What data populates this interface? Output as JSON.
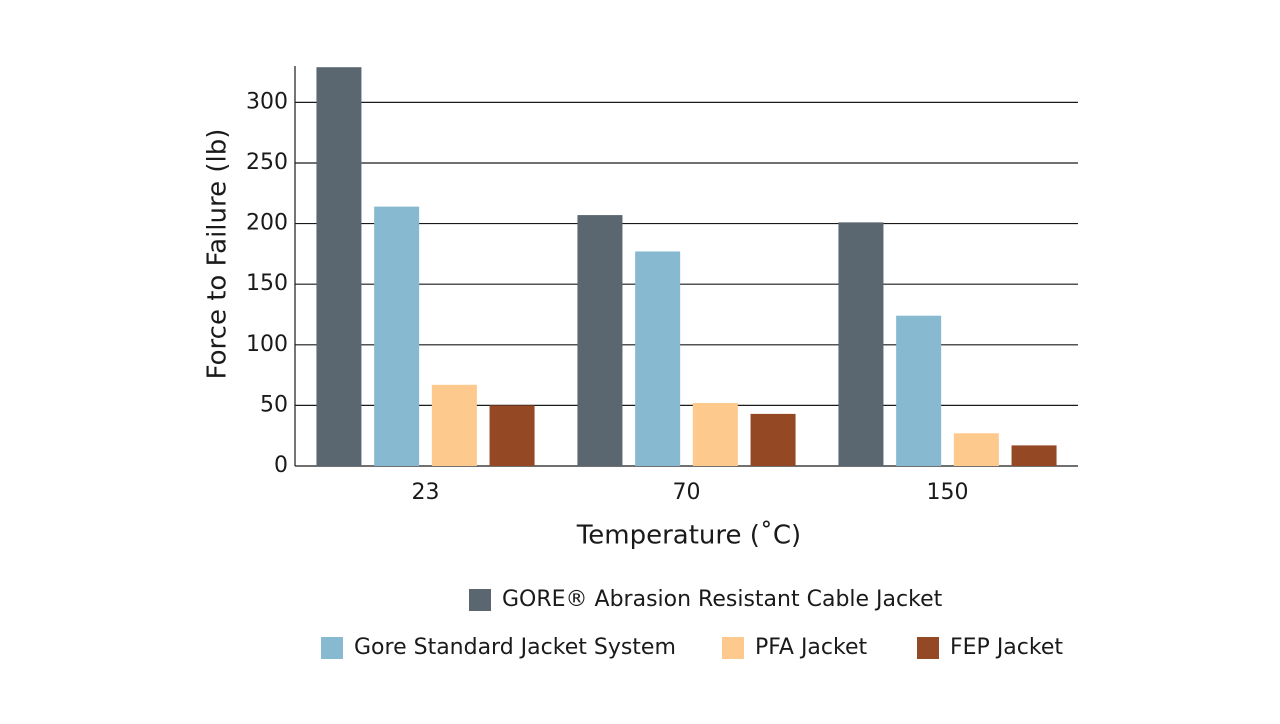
{
  "chart_data": {
    "type": "bar",
    "xlabel": "Temperature (˚C)",
    "ylabel": "Force to Failure (lb)",
    "categories": [
      "23",
      "70",
      "150"
    ],
    "series": [
      {
        "name": "GORE® Abrasion Resistant Cable Jacket",
        "color": "#5a6670",
        "values": [
          329,
          207,
          201
        ]
      },
      {
        "name": "Gore Standard Jacket System",
        "color": "#87b9d0",
        "values": [
          214,
          177,
          124
        ]
      },
      {
        "name": "PFA Jacket",
        "color": "#fdc98c",
        "values": [
          67,
          52,
          27
        ]
      },
      {
        "name": "FEP Jacket",
        "color": "#944824",
        "values": [
          50,
          43,
          17
        ]
      }
    ],
    "ylim": [
      0,
      330
    ],
    "yticks": [
      0,
      50,
      100,
      150,
      200,
      250,
      300
    ],
    "grid": true
  }
}
